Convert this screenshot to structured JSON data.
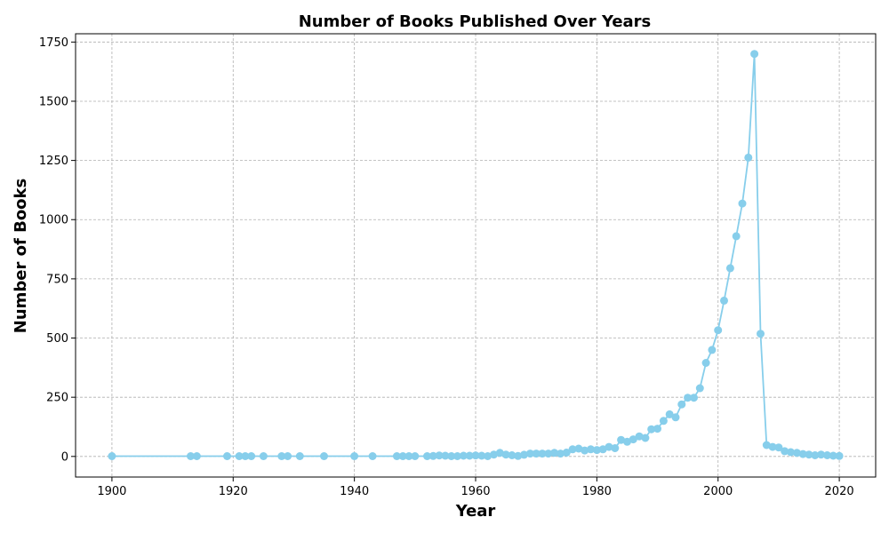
{
  "chart_data": {
    "type": "line",
    "title": "Number of Books Published Over Years",
    "xlabel": "Year",
    "ylabel": "Number of Books",
    "xlim": [
      1894,
      2026
    ],
    "ylim": [
      -87,
      1785
    ],
    "xticks": [
      1900,
      1920,
      1940,
      1960,
      1980,
      2000,
      2020
    ],
    "yticks": [
      0,
      250,
      500,
      750,
      1000,
      1250,
      1500,
      1750
    ],
    "grid": true,
    "color": "#87ceeb",
    "series": [
      {
        "x": [
          1900,
          1913,
          1914,
          1919,
          1921,
          1922,
          1923,
          1925,
          1928,
          1929,
          1931,
          1935,
          1940,
          1943,
          1947,
          1948,
          1949,
          1950,
          1952,
          1953,
          1954,
          1955,
          1956,
          1957,
          1958,
          1959,
          1960,
          1961,
          1962,
          1963,
          1964,
          1965,
          1966,
          1967,
          1968,
          1969,
          1970,
          1971,
          1972,
          1973,
          1974,
          1975,
          1976,
          1977,
          1978,
          1979,
          1980,
          1981,
          1982,
          1983,
          1984,
          1985,
          1986,
          1987,
          1988,
          1989,
          1990,
          1991,
          1992,
          1993,
          1994,
          1995,
          1996,
          1997,
          1998,
          1999,
          2000,
          2001,
          2002,
          2003,
          2004,
          2005,
          2006,
          2007,
          2008,
          2009,
          2010,
          2011,
          2012,
          2013,
          2014,
          2015,
          2016,
          2017,
          2018,
          2019,
          2020
        ],
        "y": [
          1,
          1,
          1,
          1,
          1,
          1,
          1,
          1,
          1,
          1,
          1,
          1,
          1,
          1,
          1,
          1,
          1,
          1,
          1,
          2,
          4,
          3,
          1,
          1,
          3,
          3,
          4,
          3,
          1,
          8,
          15,
          8,
          5,
          2,
          7,
          12,
          12,
          12,
          12,
          15,
          12,
          16,
          30,
          33,
          25,
          30,
          27,
          30,
          40,
          35,
          70,
          62,
          72,
          85,
          78,
          115,
          117,
          150,
          178,
          165,
          220,
          248,
          248,
          288,
          395,
          450,
          533,
          658,
          795,
          930,
          1068,
          1262,
          1700,
          518,
          48,
          40,
          38,
          22,
          18,
          15,
          10,
          8,
          5,
          8,
          5,
          3,
          2
        ]
      }
    ]
  }
}
